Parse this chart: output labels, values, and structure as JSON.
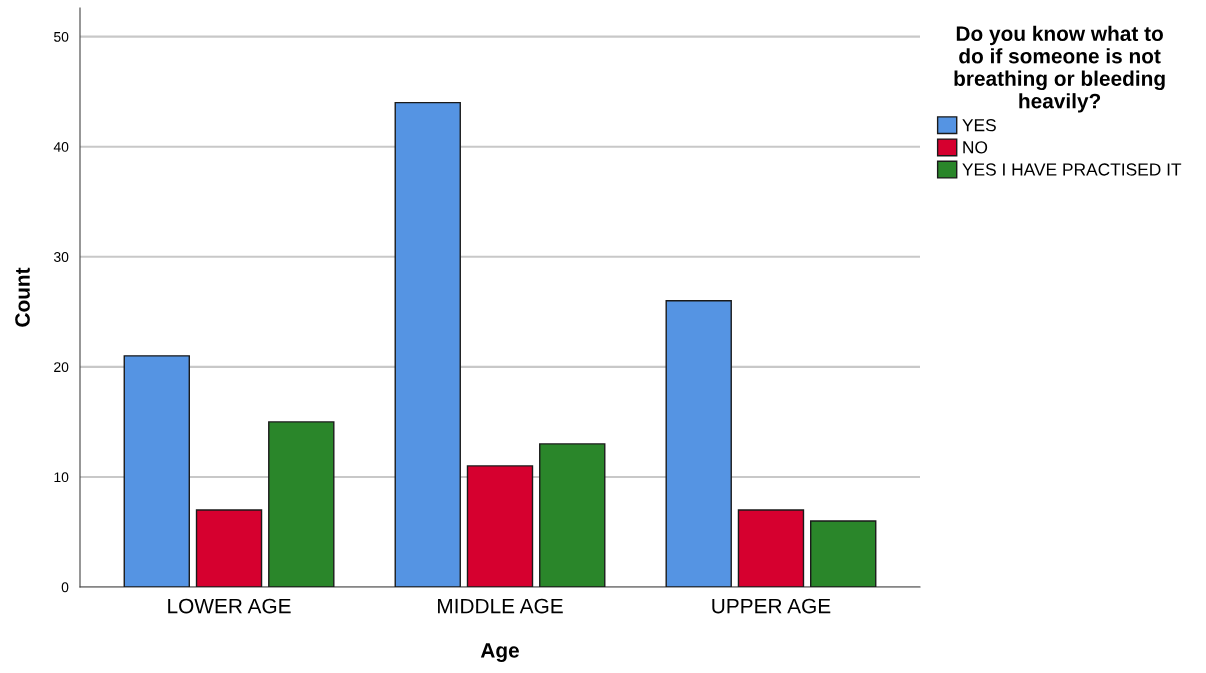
{
  "chart_data": {
    "type": "bar",
    "xlabel": "Age",
    "ylabel": "Count",
    "legend_title": "Do you know what to\ndo if someone is not\nbreathing or bleeding\nheavily?",
    "categories": [
      "LOWER AGE",
      "MIDDLE AGE",
      "UPPER AGE"
    ],
    "series": [
      {
        "name": "YES",
        "color": "#5594e3",
        "values": [
          21,
          44,
          26
        ]
      },
      {
        "name": "NO",
        "color": "#d6002f",
        "values": [
          7,
          11,
          7
        ]
      },
      {
        "name": "YES I HAVE PRACTISED IT",
        "color": "#2a862a",
        "values": [
          15,
          13,
          6
        ]
      }
    ],
    "ylim": [
      0,
      52.6
    ],
    "yticks": [
      0,
      10,
      20,
      30,
      40,
      50
    ],
    "grid": "y",
    "legend": "top right"
  }
}
